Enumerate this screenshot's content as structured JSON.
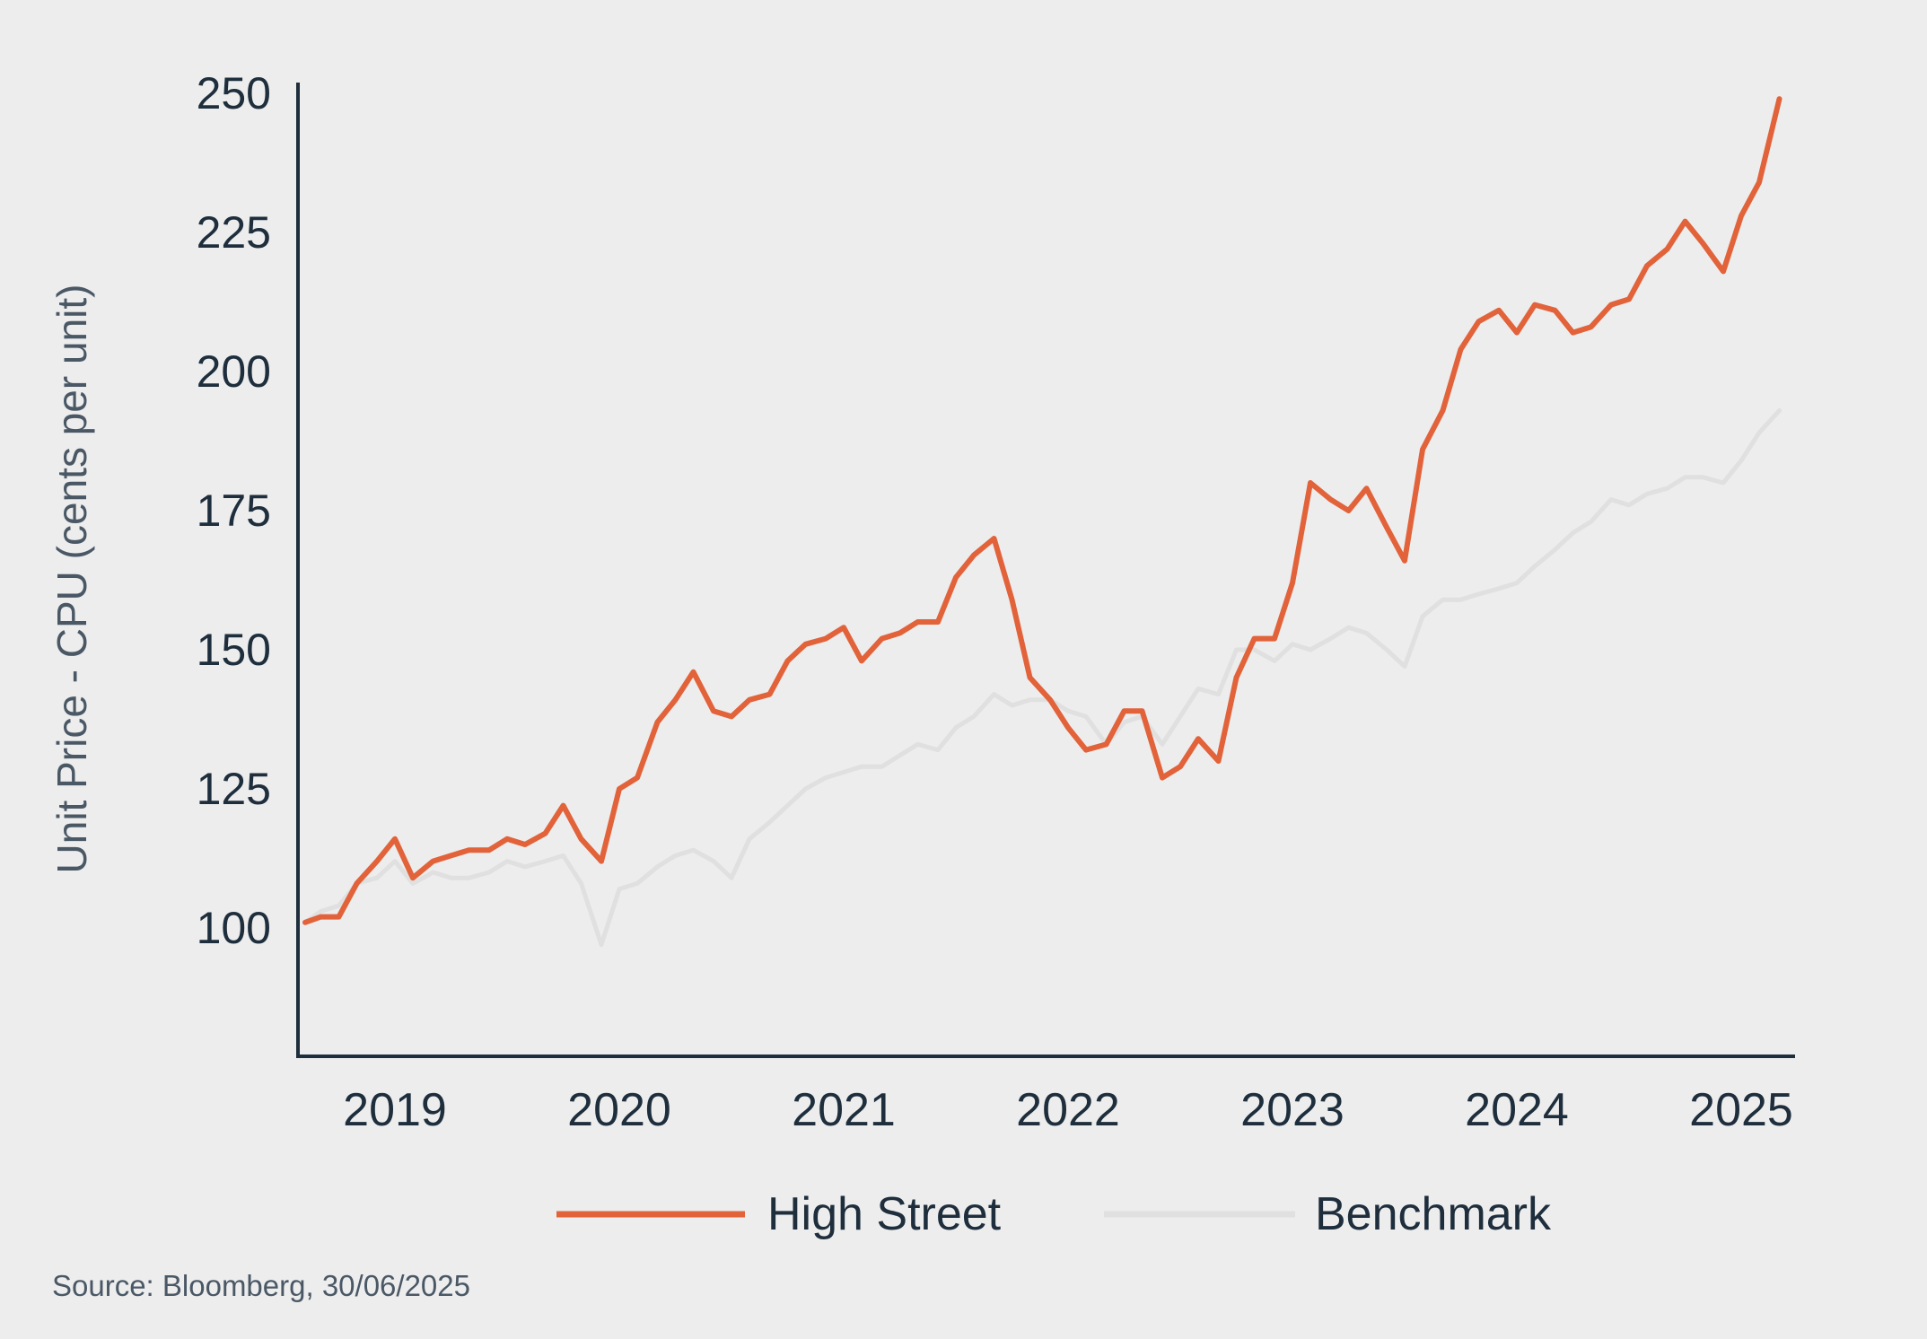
{
  "chart_data": {
    "type": "line",
    "ylabel": "Unit Price - CPU (cents per unit)",
    "xlabel": "",
    "ylim": [
      80,
      252
    ],
    "yticks": [
      100,
      125,
      150,
      175,
      200,
      225,
      250
    ],
    "xlim": [
      2018.55,
      2025.2
    ],
    "xticks": [
      2019,
      2020,
      2021,
      2022,
      2023,
      2024,
      2025
    ],
    "grid": false,
    "legend_position": "bottom-center",
    "source": "Source: Bloomberg, 30/06/2025",
    "series": [
      {
        "name": "High Street",
        "color": "#e2623a",
        "points": [
          [
            2018.6,
            101
          ],
          [
            2018.67,
            102
          ],
          [
            2018.75,
            102
          ],
          [
            2018.83,
            108
          ],
          [
            2018.92,
            112
          ],
          [
            2019.0,
            116
          ],
          [
            2019.08,
            109
          ],
          [
            2019.17,
            112
          ],
          [
            2019.25,
            113
          ],
          [
            2019.33,
            114
          ],
          [
            2019.42,
            114
          ],
          [
            2019.5,
            116
          ],
          [
            2019.58,
            115
          ],
          [
            2019.67,
            117
          ],
          [
            2019.75,
            122
          ],
          [
            2019.83,
            116
          ],
          [
            2019.92,
            112
          ],
          [
            2020.0,
            125
          ],
          [
            2020.08,
            127
          ],
          [
            2020.17,
            137
          ],
          [
            2020.25,
            141
          ],
          [
            2020.33,
            146
          ],
          [
            2020.42,
            139
          ],
          [
            2020.5,
            138
          ],
          [
            2020.58,
            141
          ],
          [
            2020.67,
            142
          ],
          [
            2020.75,
            148
          ],
          [
            2020.83,
            151
          ],
          [
            2020.92,
            152
          ],
          [
            2021.0,
            154
          ],
          [
            2021.08,
            148
          ],
          [
            2021.17,
            152
          ],
          [
            2021.25,
            153
          ],
          [
            2021.33,
            155
          ],
          [
            2021.42,
            155
          ],
          [
            2021.5,
            163
          ],
          [
            2021.58,
            167
          ],
          [
            2021.67,
            170
          ],
          [
            2021.75,
            159
          ],
          [
            2021.83,
            145
          ],
          [
            2021.92,
            141
          ],
          [
            2022.0,
            136
          ],
          [
            2022.08,
            132
          ],
          [
            2022.17,
            133
          ],
          [
            2022.25,
            139
          ],
          [
            2022.33,
            139
          ],
          [
            2022.42,
            127
          ],
          [
            2022.5,
            129
          ],
          [
            2022.58,
            134
          ],
          [
            2022.67,
            130
          ],
          [
            2022.75,
            145
          ],
          [
            2022.83,
            152
          ],
          [
            2022.92,
            152
          ],
          [
            2023.0,
            162
          ],
          [
            2023.08,
            180
          ],
          [
            2023.17,
            177
          ],
          [
            2023.25,
            175
          ],
          [
            2023.33,
            179
          ],
          [
            2023.42,
            172
          ],
          [
            2023.5,
            166
          ],
          [
            2023.58,
            186
          ],
          [
            2023.67,
            193
          ],
          [
            2023.75,
            204
          ],
          [
            2023.83,
            209
          ],
          [
            2023.92,
            211
          ],
          [
            2024.0,
            207
          ],
          [
            2024.08,
            212
          ],
          [
            2024.17,
            211
          ],
          [
            2024.25,
            207
          ],
          [
            2024.33,
            208
          ],
          [
            2024.42,
            212
          ],
          [
            2024.5,
            213
          ],
          [
            2024.58,
            219
          ],
          [
            2024.67,
            222
          ],
          [
            2024.75,
            227
          ],
          [
            2024.83,
            223
          ],
          [
            2024.92,
            218
          ],
          [
            2025.0,
            228
          ],
          [
            2025.08,
            234
          ],
          [
            2025.17,
            249
          ]
        ]
      },
      {
        "name": "Benchmark",
        "color": "#e0e0e0",
        "points": [
          [
            2018.6,
            101
          ],
          [
            2018.67,
            103
          ],
          [
            2018.75,
            104
          ],
          [
            2018.83,
            108
          ],
          [
            2018.92,
            109
          ],
          [
            2019.0,
            112
          ],
          [
            2019.08,
            108
          ],
          [
            2019.17,
            110
          ],
          [
            2019.25,
            109
          ],
          [
            2019.33,
            109
          ],
          [
            2019.42,
            110
          ],
          [
            2019.5,
            112
          ],
          [
            2019.58,
            111
          ],
          [
            2019.67,
            112
          ],
          [
            2019.75,
            113
          ],
          [
            2019.83,
            108
          ],
          [
            2019.92,
            97
          ],
          [
            2020.0,
            107
          ],
          [
            2020.08,
            108
          ],
          [
            2020.17,
            111
          ],
          [
            2020.25,
            113
          ],
          [
            2020.33,
            114
          ],
          [
            2020.42,
            112
          ],
          [
            2020.5,
            109
          ],
          [
            2020.58,
            116
          ],
          [
            2020.67,
            119
          ],
          [
            2020.75,
            122
          ],
          [
            2020.83,
            125
          ],
          [
            2020.92,
            127
          ],
          [
            2021.0,
            128
          ],
          [
            2021.08,
            129
          ],
          [
            2021.17,
            129
          ],
          [
            2021.25,
            131
          ],
          [
            2021.33,
            133
          ],
          [
            2021.42,
            132
          ],
          [
            2021.5,
            136
          ],
          [
            2021.58,
            138
          ],
          [
            2021.67,
            142
          ],
          [
            2021.75,
            140
          ],
          [
            2021.83,
            141
          ],
          [
            2021.92,
            141
          ],
          [
            2022.0,
            139
          ],
          [
            2022.08,
            138
          ],
          [
            2022.17,
            133
          ],
          [
            2022.25,
            137
          ],
          [
            2022.33,
            138
          ],
          [
            2022.42,
            133
          ],
          [
            2022.5,
            138
          ],
          [
            2022.58,
            143
          ],
          [
            2022.67,
            142
          ],
          [
            2022.75,
            150
          ],
          [
            2022.83,
            150
          ],
          [
            2022.92,
            148
          ],
          [
            2023.0,
            151
          ],
          [
            2023.08,
            150
          ],
          [
            2023.17,
            152
          ],
          [
            2023.25,
            154
          ],
          [
            2023.33,
            153
          ],
          [
            2023.42,
            150
          ],
          [
            2023.5,
            147
          ],
          [
            2023.58,
            156
          ],
          [
            2023.67,
            159
          ],
          [
            2023.75,
            159
          ],
          [
            2023.83,
            160
          ],
          [
            2023.92,
            161
          ],
          [
            2024.0,
            162
          ],
          [
            2024.08,
            165
          ],
          [
            2024.17,
            168
          ],
          [
            2024.25,
            171
          ],
          [
            2024.33,
            173
          ],
          [
            2024.42,
            177
          ],
          [
            2024.5,
            176
          ],
          [
            2024.58,
            178
          ],
          [
            2024.67,
            179
          ],
          [
            2024.75,
            181
          ],
          [
            2024.83,
            181
          ],
          [
            2024.92,
            180
          ],
          [
            2025.0,
            184
          ],
          [
            2025.08,
            189
          ],
          [
            2025.17,
            193
          ]
        ]
      }
    ]
  }
}
